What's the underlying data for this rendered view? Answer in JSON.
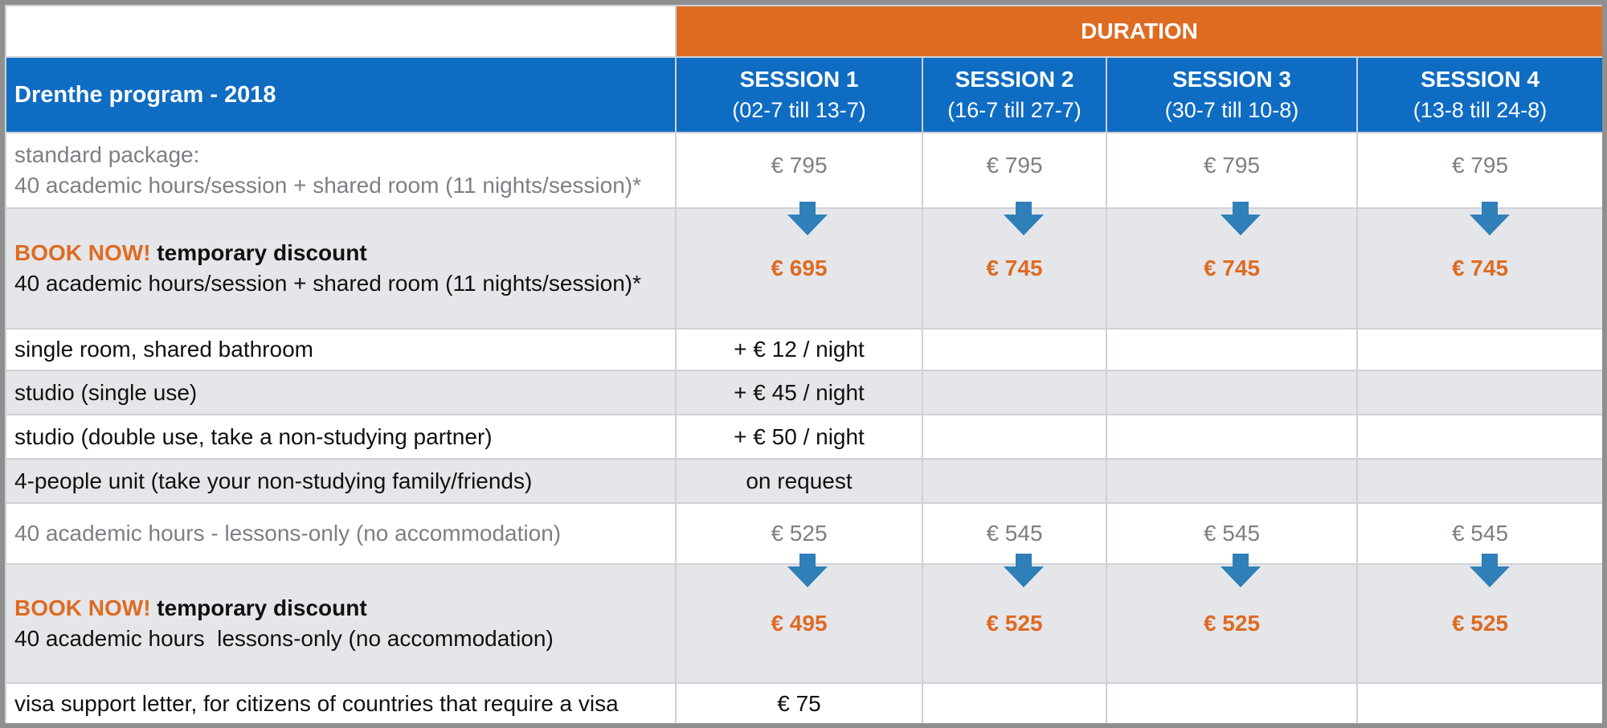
{
  "header": {
    "duration": "DURATION",
    "program": "Drenthe program - 2018",
    "sessions": [
      {
        "title": "SESSION 1",
        "dates": "(02-7 till 13-7)"
      },
      {
        "title": "SESSION 2",
        "dates": "(16-7 till 27-7)"
      },
      {
        "title": "SESSION 3",
        "dates": "(30-7 till 10-8)"
      },
      {
        "title": "SESSION 4",
        "dates": "(13-8 till 24-8)"
      }
    ]
  },
  "standard": {
    "line1": "standard package:",
    "line2": "40 academic hours/session + shared room (11 nights/session)*",
    "prices": [
      "€ 795",
      "€ 795",
      "€ 795",
      "€ 795"
    ]
  },
  "discount1": {
    "book": "BOOK NOW!",
    "label": " temporary discount",
    "line2": "40 academic hours/session + shared room (11 nights/session)*",
    "prices": [
      "€ 695",
      "€ 745",
      "€ 745",
      "€ 745"
    ]
  },
  "options": [
    {
      "label": "single room, shared bathroom",
      "price": "+ € 12 / night"
    },
    {
      "label": "studio (single use)",
      "price": "+ € 45 / night"
    },
    {
      "label": "studio (double use, take a non-studying partner)",
      "price": "+ € 50 / night"
    },
    {
      "label": "4-people unit (take your non-studying family/friends)",
      "price": "on request"
    }
  ],
  "lessons": {
    "label": "40 academic hours - lessons-only (no accommodation)",
    "prices": [
      "€ 525",
      "€ 545",
      "€ 545",
      "€ 545"
    ]
  },
  "discount2": {
    "book": "BOOK NOW!",
    "label": " temporary discount",
    "line2": "40 academic hours  lessons-only (no accommodation)",
    "prices": [
      "€ 495",
      "€ 525",
      "€ 525",
      "€ 525"
    ]
  },
  "visa": {
    "label": "visa support letter, for citizens of countries that require a visa",
    "price": "€ 75"
  },
  "colors": {
    "header_blue": "#0f6cc3",
    "accent_orange": "#de6b22",
    "arrow_blue": "#2f7fb8",
    "row_gray": "#e5e6ea",
    "muted_text": "#7d7f86"
  },
  "icons": {
    "discount_arrow": "arrow-down-icon"
  }
}
